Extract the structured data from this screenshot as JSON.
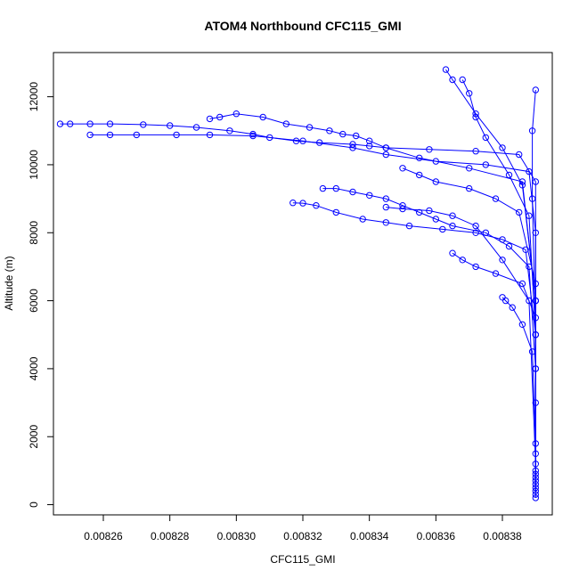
{
  "chart_data": {
    "type": "line",
    "title": "ATOM4 Northbound CFC115_GMI",
    "xlabel": "CFC115_GMI",
    "ylabel": "Altitude (m)",
    "xlim": [
      0.008245,
      0.008395
    ],
    "ylim": [
      -300,
      13300
    ],
    "x_ticks": [
      0.00826,
      0.00828,
      0.0083,
      0.00832,
      0.00834,
      0.00836,
      0.00838
    ],
    "x_tick_labels": [
      "0.00826",
      "0.00828",
      "0.00830",
      "0.00832",
      "0.00834",
      "0.00836",
      "0.00838"
    ],
    "y_ticks": [
      0,
      2000,
      4000,
      6000,
      8000,
      10000,
      12000
    ],
    "y_tick_labels": [
      "0",
      "2000",
      "4000",
      "6000",
      "8000",
      "10000",
      "12000"
    ],
    "grid": false,
    "legend": "none",
    "marker": "open-circle",
    "color": "#0000ff",
    "series": [
      {
        "x": [
          0.00839,
          0.00839,
          0.00839,
          0.00839,
          0.008385,
          0.008372,
          0.008358,
          0.008345,
          0.00834,
          0.008335,
          0.008325,
          0.008318,
          0.00831,
          0.008305,
          0.008298,
          0.008288,
          0.00828,
          0.008272,
          0.008262,
          0.008256,
          0.00825,
          0.008247
        ],
        "y": [
          500,
          3000,
          6000,
          9500,
          10300,
          10400,
          10450,
          10500,
          10550,
          10600,
          10650,
          10700,
          10800,
          10900,
          11000,
          11100,
          11150,
          11180,
          11200,
          11200,
          11200,
          11200
        ]
      },
      {
        "x": [
          0.00839,
          0.00839,
          0.00839,
          0.008388,
          0.008375,
          0.00836,
          0.008345,
          0.008335,
          0.00832,
          0.008305,
          0.008292,
          0.008282,
          0.00827,
          0.008262,
          0.008256
        ],
        "y": [
          700,
          4000,
          8000,
          9800,
          10000,
          10100,
          10300,
          10500,
          10700,
          10850,
          10880,
          10880,
          10880,
          10880,
          10880
        ]
      },
      {
        "x": [
          0.00839,
          0.00839,
          0.008386,
          0.00837,
          0.008355,
          0.008345,
          0.00834,
          0.008336,
          0.008332,
          0.008328,
          0.008322,
          0.008315,
          0.008308,
          0.0083,
          0.008295,
          0.008292
        ],
        "y": [
          1000,
          6000,
          9500,
          9900,
          10200,
          10500,
          10700,
          10850,
          10900,
          11000,
          11100,
          11200,
          11400,
          11500,
          11400,
          11350
        ]
      },
      {
        "x": [
          0.00839,
          0.00839,
          0.008388,
          0.008382,
          0.008375,
          0.008372,
          0.00837,
          0.008368
        ],
        "y": [
          300,
          5000,
          8500,
          9700,
          10800,
          11400,
          12100,
          12500
        ]
      },
      {
        "x": [
          0.00839,
          0.00839,
          0.008386,
          0.00838,
          0.008372,
          0.008365,
          0.008363
        ],
        "y": [
          400,
          6000,
          9400,
          10500,
          11500,
          12500,
          12800
        ]
      },
      {
        "x": [
          0.00839,
          0.00839,
          0.008389,
          0.008389,
          0.00839
        ],
        "y": [
          200,
          5000,
          9000,
          11000,
          12200
        ]
      },
      {
        "x": [
          0.00839,
          0.00839,
          0.008388,
          0.008382,
          0.008375,
          0.008365,
          0.00836,
          0.008355,
          0.00835,
          0.008345,
          0.00834,
          0.008335,
          0.00833,
          0.008326
        ],
        "y": [
          600,
          4000,
          7000,
          7600,
          8000,
          8200,
          8400,
          8600,
          8800,
          9000,
          9100,
          9200,
          9300,
          9300
        ]
      },
      {
        "x": [
          0.00839,
          0.00839,
          0.008387,
          0.00838,
          0.008372,
          0.008362,
          0.008352,
          0.008345,
          0.008338,
          0.00833,
          0.008324,
          0.00832,
          0.008317
        ],
        "y": [
          800,
          5000,
          7500,
          7800,
          8000,
          8100,
          8200,
          8300,
          8400,
          8600,
          8800,
          8870,
          8880
        ]
      },
      {
        "x": [
          0.00839,
          0.00839,
          0.008386,
          0.008378,
          0.008372,
          0.008368,
          0.008365
        ],
        "y": [
          900,
          5500,
          6500,
          6800,
          7000,
          7200,
          7400
        ]
      },
      {
        "x": [
          0.00839,
          0.008388,
          0.00838,
          0.008372,
          0.008365,
          0.008358,
          0.00835,
          0.008345
        ],
        "y": [
          1200,
          6000,
          7200,
          8200,
          8500,
          8650,
          8700,
          8750
        ]
      },
      {
        "x": [
          0.00839,
          0.00839,
          0.008385,
          0.008378,
          0.00837,
          0.00836,
          0.008355,
          0.00835
        ],
        "y": [
          1500,
          6500,
          8600,
          9000,
          9300,
          9500,
          9700,
          9900
        ]
      },
      {
        "x": [
          0.00839,
          0.008389,
          0.008386,
          0.008383,
          0.008381,
          0.00838
        ],
        "y": [
          1800,
          4500,
          5300,
          5800,
          6000,
          6100
        ]
      }
    ]
  }
}
